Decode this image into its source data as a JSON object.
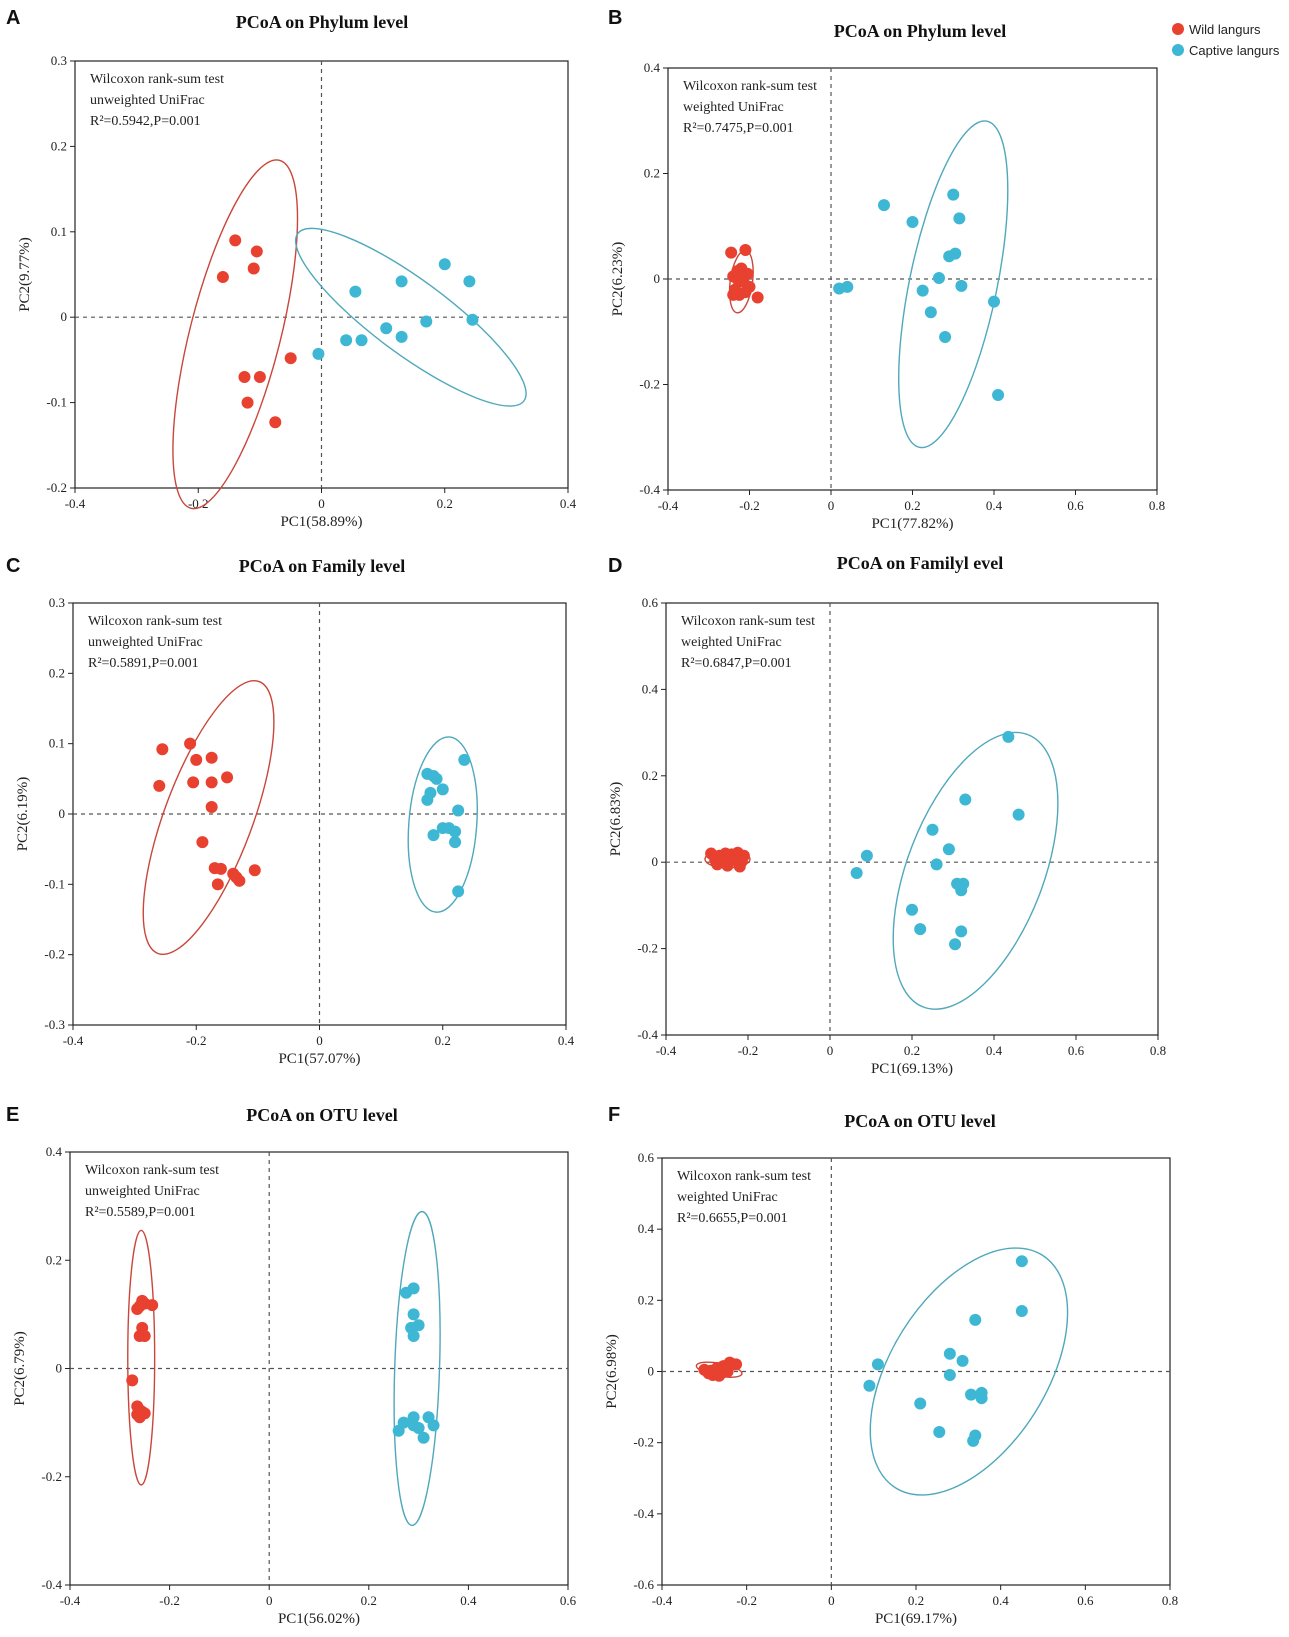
{
  "legend": {
    "placement": "top-right",
    "items": [
      {
        "label": "Wild langurs",
        "color": "#E8412F"
      },
      {
        "label": "Captive langurs",
        "color": "#3DB7D4"
      }
    ]
  },
  "colors": {
    "wild": "#E8412F",
    "wild_ellipse": "#C8463A",
    "captive": "#3DB7D4",
    "captive_ellipse": "#4FA8BB"
  },
  "chart_data": [
    {
      "panel": "A",
      "type": "scatter",
      "title": "PCoA on Phylum level",
      "xlabel": "PC1(58.89%)",
      "ylabel": "PC2(9.77%)",
      "xlim": [
        -0.4,
        0.4
      ],
      "ylim": [
        -0.2,
        0.3
      ],
      "xticks": [
        -0.4,
        -0.2,
        0,
        0.2,
        0.4
      ],
      "xtick_labels": [
        "-0.4",
        "-0.2",
        "0",
        "0.2",
        "0.4"
      ],
      "yticks": [
        -0.2,
        -0.1,
        0,
        0.1,
        0.2,
        0.3
      ],
      "ytick_labels": [
        "-0.2",
        "-0.1",
        "0",
        "0.1",
        "0.2",
        "0.3"
      ],
      "annotation": [
        "Wilcoxon rank-sum test",
        "unweighted UniFrac",
        "R²=0.5942,P=0.001"
      ],
      "series": [
        {
          "name": "Wild langurs",
          "color": "#E8412F",
          "x": [
            -0.14,
            -0.105,
            -0.11,
            -0.16,
            -0.05,
            -0.125,
            -0.1,
            -0.12,
            -0.075
          ],
          "y": [
            0.09,
            0.077,
            0.057,
            0.047,
            -0.048,
            -0.07,
            -0.07,
            -0.1,
            -0.123
          ],
          "ellipse": {
            "cx": -0.14,
            "cy": -0.02,
            "rx": 0.216,
            "ry": 0.07,
            "angle_deg": -70.6
          }
        },
        {
          "name": "Captive langurs",
          "color": "#3DB7D4",
          "x": [
            -0.005,
            0.055,
            0.04,
            0.065,
            0.105,
            0.13,
            0.13,
            0.17,
            0.2,
            0.24,
            0.245
          ],
          "y": [
            -0.043,
            0.03,
            -0.027,
            -0.027,
            -0.013,
            0.042,
            -0.023,
            -0.005,
            0.062,
            0.042,
            -0.003
          ],
          "ellipse": {
            "cx": 0.145,
            "cy": 0.0,
            "rx": 0.208,
            "ry": 0.046,
            "angle_deg": 28.1
          }
        }
      ]
    },
    {
      "panel": "B",
      "type": "scatter",
      "title": "PCoA on Phylum level",
      "xlabel": "PC1(77.82%)",
      "ylabel": "PC2(6.23%)",
      "xlim": [
        -0.4,
        0.8
      ],
      "ylim": [
        -0.4,
        0.4
      ],
      "xticks": [
        -0.4,
        -0.2,
        0,
        0.2,
        0.4,
        0.6,
        0.8
      ],
      "xtick_labels": [
        "-0.4",
        "-0.2",
        "0",
        "0.2",
        "0.4",
        "0.6",
        "0.8"
      ],
      "yticks": [
        -0.4,
        -0.2,
        0,
        0.2,
        0.4
      ],
      "ytick_labels": [
        "-0.4",
        "-0.2",
        "0",
        "0.2",
        "0.4"
      ],
      "annotation": [
        "Wilcoxon rank-sum test",
        "weighted UniFrac",
        "R²=0.7475,P=0.001"
      ],
      "series": [
        {
          "name": "Wild langurs",
          "color": "#E8412F",
          "x": [
            -0.245,
            -0.21,
            -0.22,
            -0.24,
            -0.23,
            -0.215,
            -0.205,
            -0.235,
            -0.225,
            -0.18,
            -0.2,
            -0.23,
            -0.24,
            -0.21
          ],
          "y": [
            0.05,
            0.055,
            0.02,
            0.005,
            0.0,
            -0.005,
            0.01,
            -0.02,
            -0.03,
            -0.035,
            -0.015,
            0.015,
            -0.03,
            -0.025
          ],
          "ellipse": {
            "cx": -0.22,
            "cy": -0.005,
            "rx": 0.06,
            "ry": 0.027,
            "angle_deg": -80
          }
        },
        {
          "name": "Captive langurs",
          "color": "#3DB7D4",
          "x": [
            0.13,
            0.3,
            0.2,
            0.315,
            0.305,
            0.29,
            0.02,
            0.04,
            0.265,
            0.225,
            0.32,
            0.245,
            0.4,
            0.28,
            0.41
          ],
          "y": [
            0.14,
            0.16,
            0.108,
            0.115,
            0.048,
            0.043,
            -0.018,
            -0.015,
            0.002,
            -0.022,
            -0.013,
            -0.063,
            -0.043,
            -0.11,
            -0.22
          ],
          "ellipse": {
            "cx": 0.3,
            "cy": -0.01,
            "rx": 0.32,
            "ry": 0.105,
            "angle_deg": -75
          }
        }
      ]
    },
    {
      "panel": "C",
      "type": "scatter",
      "title": "PCoA on Family level",
      "xlabel": "PC1(57.07%)",
      "ylabel": "PC2(6.19%)",
      "xlim": [
        -0.4,
        0.4
      ],
      "ylim": [
        -0.3,
        0.3
      ],
      "xticks": [
        -0.4,
        -0.2,
        0,
        0.2,
        0.4
      ],
      "xtick_labels": [
        "-0.4",
        "-0.2",
        "0",
        "0.2",
        "0.4"
      ],
      "yticks": [
        -0.3,
        -0.2,
        -0.1,
        0,
        0.1,
        0.2,
        0.3
      ],
      "ytick_labels": [
        "-0.3",
        "-0.2",
        "-0.1",
        "0",
        "0.1",
        "0.2",
        "0.3"
      ],
      "annotation": [
        "Wilcoxon rank-sum test",
        "unweighted UniFrac",
        "R²=0.5891,P=0.001"
      ],
      "series": [
        {
          "name": "Wild langurs",
          "color": "#E8412F",
          "x": [
            -0.255,
            -0.21,
            -0.2,
            -0.175,
            -0.26,
            -0.205,
            -0.175,
            -0.15,
            -0.175,
            -0.19,
            -0.17,
            -0.16,
            -0.14,
            -0.135,
            -0.105,
            -0.13,
            -0.165
          ],
          "y": [
            0.092,
            0.1,
            0.077,
            0.08,
            0.04,
            0.045,
            0.045,
            0.052,
            0.01,
            -0.04,
            -0.077,
            -0.078,
            -0.085,
            -0.09,
            -0.08,
            -0.095,
            -0.1
          ],
          "ellipse": {
            "cx": -0.18,
            "cy": -0.005,
            "rx": 0.21,
            "ry": 0.07,
            "angle_deg": -67
          }
        },
        {
          "name": "Captive langurs",
          "color": "#3DB7D4",
          "x": [
            0.175,
            0.185,
            0.19,
            0.235,
            0.2,
            0.18,
            0.175,
            0.225,
            0.185,
            0.21,
            0.22,
            0.2,
            0.22,
            0.225
          ],
          "y": [
            0.057,
            0.054,
            0.05,
            0.077,
            0.035,
            0.03,
            0.02,
            0.005,
            -0.03,
            -0.02,
            -0.025,
            -0.02,
            -0.04,
            -0.11
          ],
          "ellipse": {
            "cx": 0.2,
            "cy": -0.015,
            "rx": 0.125,
            "ry": 0.055,
            "angle_deg": -85
          }
        }
      ]
    },
    {
      "panel": "D",
      "type": "scatter",
      "title": "PCoA on Familyl evel",
      "xlabel": "PC1(69.13%)",
      "ylabel": "PC2(6.83%)",
      "xlim": [
        -0.4,
        0.8
      ],
      "ylim": [
        -0.4,
        0.6
      ],
      "xticks": [
        -0.4,
        -0.2,
        0,
        0.2,
        0.4,
        0.6,
        0.8
      ],
      "xtick_labels": [
        "-0.4",
        "-0.2",
        "0",
        "0.2",
        "0.4",
        "0.6",
        "0.8"
      ],
      "yticks": [
        -0.4,
        -0.2,
        0,
        0.2,
        0.4,
        0.6
      ],
      "ytick_labels": [
        "-0.4",
        "-0.2",
        "0",
        "0.2",
        "0.4",
        "0.6"
      ],
      "annotation": [
        "Wilcoxon rank-sum test",
        "weighted UniFrac",
        "R²=0.6847,P=0.001"
      ],
      "series": [
        {
          "name": "Wild langurs",
          "color": "#E8412F",
          "x": [
            -0.29,
            -0.27,
            -0.255,
            -0.24,
            -0.225,
            -0.21,
            -0.28,
            -0.26,
            -0.245,
            -0.23,
            -0.215,
            -0.275,
            -0.25,
            -0.22
          ],
          "y": [
            0.02,
            0.015,
            0.02,
            0.018,
            0.022,
            0.015,
            0.005,
            0.003,
            0.008,
            0.005,
            0.002,
            -0.005,
            -0.008,
            -0.01
          ],
          "ellipse": {
            "cx": -0.25,
            "cy": 0.007,
            "rx": 0.055,
            "ry": 0.02,
            "angle_deg": 0
          }
        },
        {
          "name": "Captive langurs",
          "color": "#3DB7D4",
          "x": [
            0.435,
            0.33,
            0.46,
            0.25,
            0.29,
            0.09,
            0.065,
            0.26,
            0.31,
            0.325,
            0.32,
            0.2,
            0.22,
            0.32,
            0.305
          ],
          "y": [
            0.29,
            0.145,
            0.11,
            0.075,
            0.03,
            0.015,
            -0.025,
            -0.005,
            -0.05,
            -0.05,
            -0.065,
            -0.11,
            -0.155,
            -0.16,
            -0.19
          ],
          "ellipse": {
            "cx": 0.355,
            "cy": -0.02,
            "rx": 0.34,
            "ry": 0.165,
            "angle_deg": -68
          }
        }
      ]
    },
    {
      "panel": "E",
      "type": "scatter",
      "title": "PCoA on OTU level",
      "xlabel": "PC1(56.02%)",
      "ylabel": "PC2(6.79%)",
      "xlim": [
        -0.4,
        0.6
      ],
      "ylim": [
        -0.4,
        0.4
      ],
      "xticks": [
        -0.4,
        -0.2,
        0,
        0.2,
        0.4,
        0.6
      ],
      "xtick_labels": [
        "-0.4",
        "-0.2",
        "0",
        "0.2",
        "0.4",
        "0.6"
      ],
      "yticks": [
        -0.4,
        -0.2,
        0,
        0.2,
        0.4
      ],
      "ytick_labels": [
        "-0.4",
        "-0.2",
        "0",
        "0.2",
        "0.4"
      ],
      "annotation": [
        "Wilcoxon rank-sum test",
        "unweighted UniFrac",
        "R²=0.5589,P=0.001"
      ],
      "series": [
        {
          "name": "Wild langurs",
          "color": "#E8412F",
          "x": [
            -0.255,
            -0.26,
            -0.25,
            -0.235,
            -0.265,
            -0.255,
            -0.26,
            -0.25,
            -0.275,
            -0.265,
            -0.26,
            -0.255,
            -0.25,
            -0.265,
            -0.26
          ],
          "y": [
            0.125,
            0.115,
            0.12,
            0.117,
            0.11,
            0.075,
            0.06,
            0.06,
            -0.022,
            -0.07,
            -0.077,
            -0.08,
            -0.083,
            -0.085,
            -0.09
          ],
          "ellipse": {
            "cx": -0.257,
            "cy": 0.02,
            "rx": 0.235,
            "ry": 0.027,
            "angle_deg": -90
          }
        },
        {
          "name": "Captive langurs",
          "color": "#3DB7D4",
          "x": [
            0.275,
            0.29,
            0.29,
            0.3,
            0.285,
            0.29,
            0.27,
            0.29,
            0.32,
            0.29,
            0.33,
            0.3,
            0.31,
            0.26
          ],
          "y": [
            0.14,
            0.148,
            0.1,
            0.08,
            0.075,
            0.06,
            -0.1,
            -0.09,
            -0.09,
            -0.105,
            -0.105,
            -0.11,
            -0.128,
            -0.115
          ],
          "ellipse": {
            "cx": 0.297,
            "cy": 0.0,
            "rx": 0.29,
            "ry": 0.045,
            "angle_deg": -88
          }
        }
      ]
    },
    {
      "panel": "F",
      "type": "scatter",
      "title": "PCoA on OTU level",
      "xlabel": "PC1(69.17%)",
      "ylabel": "PC2(6.98%)",
      "xlim": [
        -0.4,
        0.8
      ],
      "ylim": [
        -0.6,
        0.6
      ],
      "xticks": [
        -0.4,
        -0.2,
        0,
        0.2,
        0.4,
        0.6,
        0.8
      ],
      "xtick_labels": [
        "-0.4",
        "-0.2",
        "0",
        "0.2",
        "0.4",
        "0.6",
        "0.8"
      ],
      "yticks": [
        -0.6,
        -0.4,
        -0.2,
        0,
        0.2,
        0.4,
        0.6
      ],
      "ytick_labels": [
        "-0.6",
        "-0.4",
        "-0.2",
        "0",
        "0.2",
        "0.4",
        "0.6"
      ],
      "annotation": [
        "Wilcoxon rank-sum test",
        "weighted UniFrac",
        "R²=0.6655,P=0.001"
      ],
      "series": [
        {
          "name": "Wild langurs",
          "color": "#E8412F",
          "x": [
            -0.3,
            -0.285,
            -0.27,
            -0.255,
            -0.24,
            -0.225,
            -0.29,
            -0.275,
            -0.26,
            -0.245,
            -0.23,
            -0.28,
            -0.265,
            -0.25
          ],
          "y": [
            0.005,
            0.002,
            0.01,
            0.015,
            0.025,
            0.02,
            -0.005,
            -0.008,
            -0.005,
            0.0,
            0.02,
            -0.01,
            -0.012,
            0.005
          ],
          "ellipse": {
            "cx": -0.265,
            "cy": 0.005,
            "rx": 0.055,
            "ry": 0.018,
            "angle_deg": 12
          }
        },
        {
          "name": "Captive langurs",
          "color": "#3DB7D4",
          "x": [
            0.45,
            0.45,
            0.34,
            0.11,
            0.28,
            0.31,
            0.09,
            0.33,
            0.355,
            0.355,
            0.28,
            0.21,
            0.255,
            0.34,
            0.335
          ],
          "y": [
            0.31,
            0.17,
            0.145,
            0.02,
            0.05,
            0.03,
            -0.04,
            -0.065,
            -0.06,
            -0.075,
            -0.01,
            -0.09,
            -0.17,
            -0.18,
            -0.195
          ],
          "ellipse": {
            "cx": 0.325,
            "cy": 0.0,
            "rx": 0.37,
            "ry": 0.19,
            "angle_deg": -62
          }
        }
      ]
    }
  ]
}
